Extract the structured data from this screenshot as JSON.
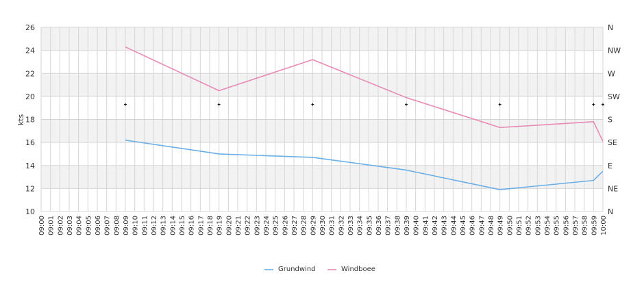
{
  "chart_data": {
    "type": "line",
    "ylabel": "kts",
    "ylim": [
      10,
      26
    ],
    "y_ticks": [
      10,
      12,
      14,
      16,
      18,
      20,
      22,
      24,
      26
    ],
    "y2_ticks": [
      "N",
      "NE",
      "E",
      "SE",
      "S",
      "SW",
      "W",
      "NW",
      "N"
    ],
    "grid": true,
    "legend_position": "bottom",
    "x_labels": [
      "09:00",
      "09:01",
      "09:02",
      "09:03",
      "09:04",
      "09:05",
      "09:06",
      "09:07",
      "09:08",
      "09:09",
      "09:10",
      "09:11",
      "09:12",
      "09:13",
      "09:14",
      "09:15",
      "09:16",
      "09:17",
      "09:18",
      "09:19",
      "09:20",
      "09:21",
      "09:22",
      "09:23",
      "09:24",
      "09:25",
      "09:26",
      "09:27",
      "09:28",
      "09:29",
      "09:30",
      "09:31",
      "09:32",
      "09:33",
      "09:34",
      "09:35",
      "09:36",
      "09:37",
      "09:38",
      "09:39",
      "09:40",
      "09:41",
      "09:42",
      "09:43",
      "09:44",
      "09:45",
      "09:46",
      "09:47",
      "09:48",
      "09:49",
      "09:50",
      "09:51",
      "09:52",
      "09:53",
      "09:54",
      "09:55",
      "09:56",
      "09:57",
      "09:58",
      "09:59",
      "10:00"
    ],
    "series": [
      {
        "name": "Grundwind",
        "color": "#6aaee8",
        "points": [
          [
            9,
            16.2
          ],
          [
            19,
            15.0
          ],
          [
            29,
            14.7
          ],
          [
            39,
            13.6
          ],
          [
            49,
            11.9
          ],
          [
            59,
            12.7
          ],
          [
            60,
            13.5
          ]
        ]
      },
      {
        "name": "Windboee",
        "color": "#e88ab5",
        "points": [
          [
            9,
            24.3
          ],
          [
            19,
            20.5
          ],
          [
            29,
            23.2
          ],
          [
            39,
            19.9
          ],
          [
            49,
            17.3
          ],
          [
            59,
            17.8
          ],
          [
            60,
            16.1
          ]
        ]
      }
    ],
    "direction_markers": [
      {
        "x": 9,
        "value": "SW"
      },
      {
        "x": 19,
        "value": "SW"
      },
      {
        "x": 29,
        "value": "SW"
      },
      {
        "x": 39,
        "value": "SW"
      },
      {
        "x": 49,
        "value": "SW"
      },
      {
        "x": 59,
        "value": "SW"
      },
      {
        "x": 60,
        "value": "SW"
      }
    ]
  }
}
